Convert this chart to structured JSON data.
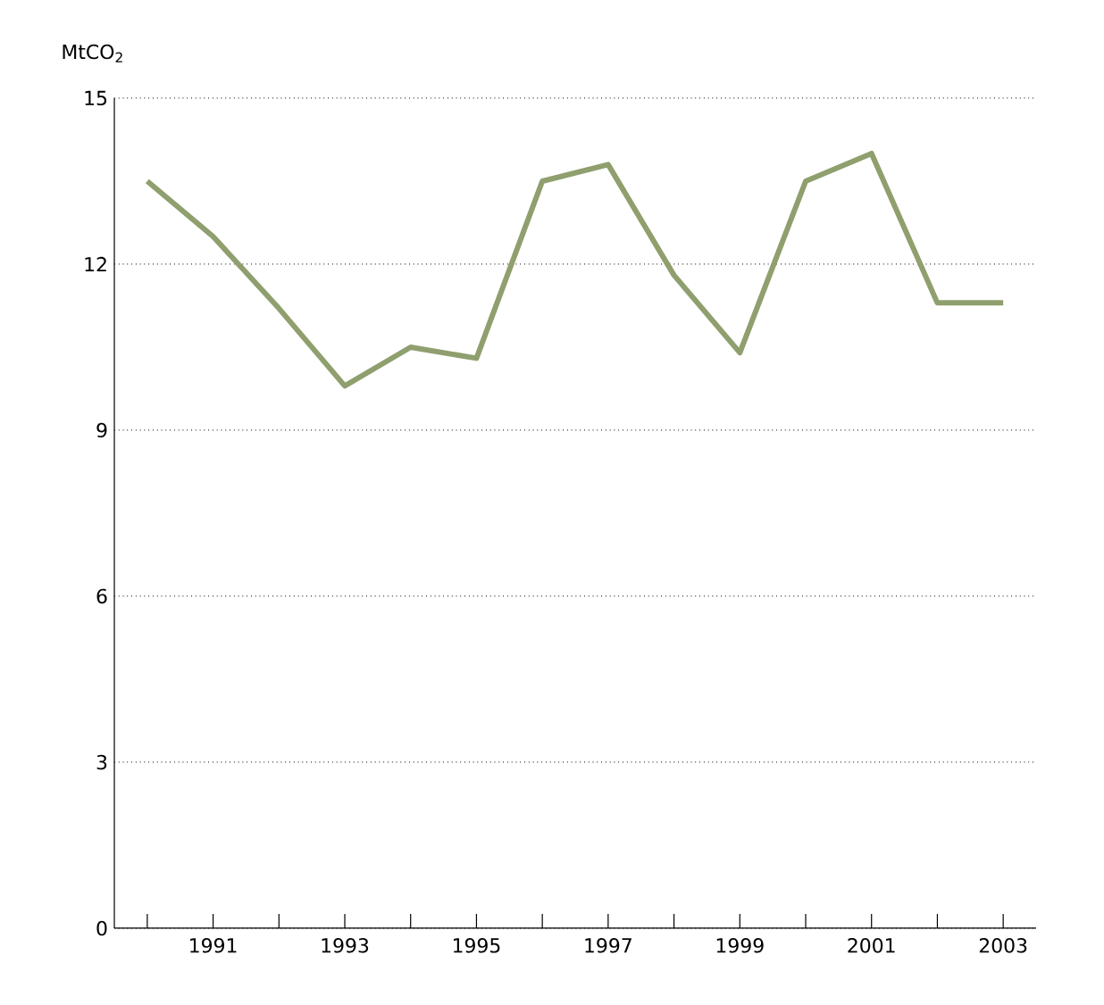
{
  "chart_data": {
    "type": "line",
    "ylabel": "MtCO$_{2}$",
    "x": [
      1990,
      1991,
      1992,
      1993,
      1994,
      1995,
      1996,
      1997,
      1998,
      1999,
      2000,
      2001,
      2002,
      2003
    ],
    "series": [
      {
        "color": "#8f9f6e",
        "values": [
          13.5,
          12.5,
          11.2,
          9.8,
          10.5,
          10.3,
          13.5,
          13.8,
          11.8,
          10.4,
          13.5,
          14.0,
          11.3,
          11.3
        ]
      }
    ],
    "xlim": [
      1989.5,
      2003.5
    ],
    "xticks": [
      {
        "value": 1990,
        "label": null
      },
      1991,
      {
        "value": 1992,
        "label": null
      },
      1993,
      {
        "value": 1994,
        "label": null
      },
      1995,
      {
        "value": 1996,
        "label": null
      },
      1997,
      {
        "value": 1998,
        "label": null
      },
      1999,
      {
        "value": 2000,
        "label": null
      },
      2001,
      {
        "value": 2002,
        "label": null
      },
      2003
    ],
    "ylim": [
      0,
      15
    ],
    "yticks": [
      0,
      3,
      6,
      9,
      12,
      15
    ],
    "grid": "y",
    "marker": "none",
    "line_style": "solid"
  }
}
